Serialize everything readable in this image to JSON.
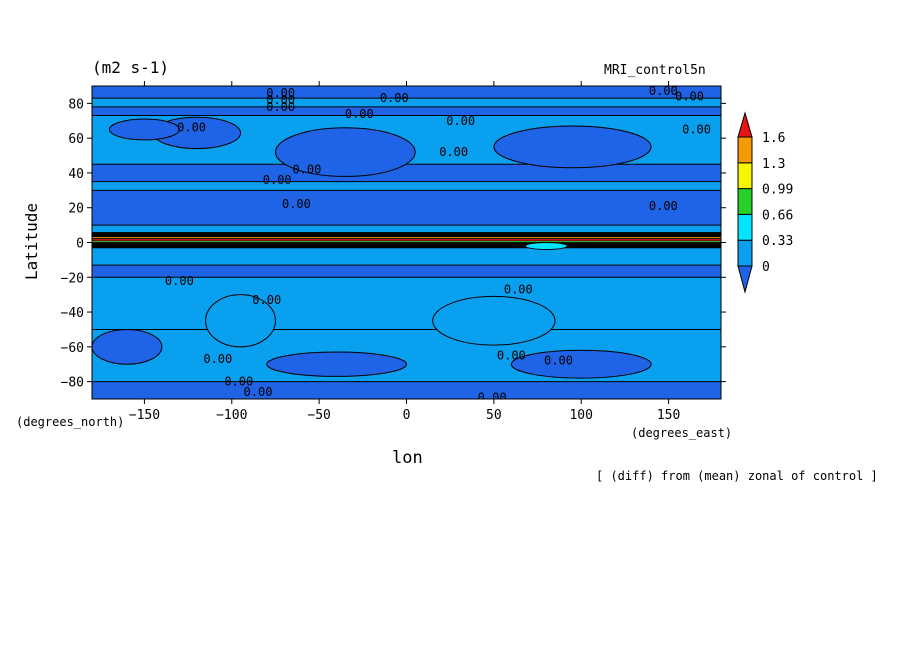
{
  "chart_data": {
    "type": "heatmap",
    "title": "",
    "units_label": "(m2 s-1)",
    "model_label": "MRI_control5n",
    "xlabel": "lon",
    "ylabel": "Latitude",
    "x_unit_label": "(degrees_east)",
    "y_unit_label": "(degrees_north)",
    "note": "[ (diff) from (mean) zonal of control ]",
    "xlim": [
      -180,
      180
    ],
    "ylim": [
      -90,
      90
    ],
    "x_ticks": [
      -150,
      -100,
      -50,
      0,
      50,
      100,
      150
    ],
    "y_ticks": [
      -80,
      -60,
      -40,
      -20,
      0,
      20,
      40,
      60,
      80
    ],
    "x_tick_labels": [
      "−150",
      "−100",
      "−50",
      "0",
      "50",
      "100",
      "150"
    ],
    "y_tick_labels": [
      "−80",
      "−60",
      "−40",
      "−20",
      "0",
      "20",
      "40",
      "60",
      "80"
    ],
    "colorbar": {
      "levels": [
        "0",
        "0.33",
        "0.66",
        "0.99",
        "1.3",
        "1.6"
      ],
      "colors": [
        "#1f63e6",
        "#0aa0f0",
        "#00e6ff",
        "#27d12b",
        "#f6f600",
        "#f59a00",
        "#e61414"
      ]
    },
    "contour_label": "0.00",
    "contour_label_positions": [
      {
        "lon": -72,
        "lat": 86
      },
      {
        "lon": -72,
        "lat": 82
      },
      {
        "lon": -72,
        "lat": 78
      },
      {
        "lon": -7,
        "lat": 83
      },
      {
        "lon": -27,
        "lat": 74
      },
      {
        "lon": 31,
        "lat": 70
      },
      {
        "lon": 147,
        "lat": 87
      },
      {
        "lon": 162,
        "lat": 84
      },
      {
        "lon": 166,
        "lat": 65
      },
      {
        "lon": -123,
        "lat": 66
      },
      {
        "lon": 27,
        "lat": 52
      },
      {
        "lon": -57,
        "lat": 42
      },
      {
        "lon": -74,
        "lat": 36
      },
      {
        "lon": -63,
        "lat": 22
      },
      {
        "lon": 147,
        "lat": 21
      },
      {
        "lon": -130,
        "lat": -22
      },
      {
        "lon": 64,
        "lat": -27
      },
      {
        "lon": -80,
        "lat": -33
      },
      {
        "lon": -108,
        "lat": -67
      },
      {
        "lon": 60,
        "lat": -65
      },
      {
        "lon": 87,
        "lat": -68
      },
      {
        "lon": -96,
        "lat": -80
      },
      {
        "lon": -85,
        "lat": -86
      },
      {
        "lon": -70,
        "lat": -93
      },
      {
        "lon": 49,
        "lat": -89
      }
    ],
    "bands": [
      {
        "lat_top": 90,
        "lat_bottom": 83,
        "level": 0
      },
      {
        "lat_top": 83,
        "lat_bottom": 78,
        "level": 1
      },
      {
        "lat_top": 78,
        "lat_bottom": 73,
        "level": 0
      },
      {
        "lat_top": 73,
        "lat_bottom": 45,
        "level": 1
      },
      {
        "lat_top": 45,
        "lat_bottom": 35,
        "level": 0
      },
      {
        "lat_top": 35,
        "lat_bottom": 30,
        "level": 1
      },
      {
        "lat_top": 30,
        "lat_bottom": 10,
        "level": 0
      },
      {
        "lat_top": 10,
        "lat_bottom": 6,
        "level": 1
      },
      {
        "lat_top": 6,
        "lat_bottom": -3,
        "level": "equator"
      },
      {
        "lat_top": -3,
        "lat_bottom": -13,
        "level": 1
      },
      {
        "lat_top": -13,
        "lat_bottom": -20,
        "level": 0
      },
      {
        "lat_top": -20,
        "lat_bottom": -50,
        "level": 1
      },
      {
        "lat_top": -50,
        "lat_bottom": -80,
        "level": 1
      },
      {
        "lat_top": -80,
        "lat_bottom": -90,
        "level": 0
      }
    ],
    "blobs": [
      {
        "lon": -120,
        "lat": 63,
        "rlon": 25,
        "rlat": 9,
        "level": 0
      },
      {
        "lon": -35,
        "lat": 52,
        "rlon": 40,
        "rlat": 14,
        "level": 0
      },
      {
        "lon": 95,
        "lat": 55,
        "rlon": 45,
        "rlat": 12,
        "level": 0
      },
      {
        "lon": -150,
        "lat": 65,
        "rlon": 20,
        "rlat": 6,
        "level": 0
      },
      {
        "lon": -95,
        "lat": -45,
        "rlon": 20,
        "rlat": 15,
        "level": 1
      },
      {
        "lon": 50,
        "lat": -45,
        "rlon": 35,
        "rlat": 14,
        "level": 1
      },
      {
        "lon": -160,
        "lat": -60,
        "rlon": 20,
        "rlat": 10,
        "level": 0
      },
      {
        "lon": 100,
        "lat": -70,
        "rlon": 40,
        "rlat": 8,
        "level": 0
      },
      {
        "lon": -40,
        "lat": -70,
        "rlon": 40,
        "rlat": 7,
        "level": 0
      },
      {
        "lon": 80,
        "lat": -2,
        "rlon": 12,
        "rlat": 2,
        "level": 2
      }
    ]
  }
}
